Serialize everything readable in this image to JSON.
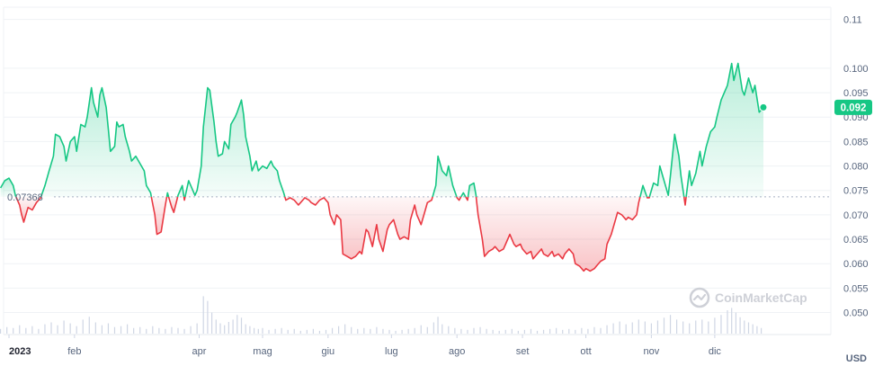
{
  "chart_data": {
    "type": "line",
    "currency_label": "USD",
    "watermark": "CoinMarketCap",
    "reference_value": 0.07368,
    "reference_label": "0.07368",
    "current_value": 0.092,
    "current_label": "0.092",
    "y_ticks": [
      "0.050",
      "0.055",
      "0.060",
      "0.065",
      "0.070",
      "0.075",
      "0.080",
      "0.085",
      "0.090",
      "0.095",
      "0.100",
      "0.11"
    ],
    "ylim": [
      0.0455,
      0.1125
    ],
    "x_ticks": [
      {
        "label": "2023",
        "day": 0,
        "bold": true
      },
      {
        "label": "feb",
        "day": 31
      },
      {
        "label": "apr",
        "day": 90
      },
      {
        "label": "mag",
        "day": 120
      },
      {
        "label": "giu",
        "day": 151
      },
      {
        "label": "lug",
        "day": 181
      },
      {
        "label": "ago",
        "day": 212
      },
      {
        "label": "set",
        "day": 243
      },
      {
        "label": "ott",
        "day": 273
      },
      {
        "label": "nov",
        "day": 304
      },
      {
        "label": "dic",
        "day": 334
      }
    ],
    "colors": {
      "up": "#16c784",
      "down": "#ea3943",
      "grid": "#eff2f5",
      "volume": "#cfd6e4",
      "tag_bg": "#16c784"
    },
    "price": [
      [
        -4,
        0.0755
      ],
      [
        -2,
        0.077
      ],
      [
        0,
        0.0775
      ],
      [
        2,
        0.076
      ],
      [
        3,
        0.074
      ],
      [
        5,
        0.072
      ],
      [
        6,
        0.07
      ],
      [
        7,
        0.0685
      ],
      [
        9,
        0.0715
      ],
      [
        11,
        0.071
      ],
      [
        13,
        0.0725
      ],
      [
        15,
        0.0735
      ],
      [
        17,
        0.076
      ],
      [
        19,
        0.079
      ],
      [
        21,
        0.082
      ],
      [
        22,
        0.0865
      ],
      [
        24,
        0.086
      ],
      [
        26,
        0.084
      ],
      [
        27,
        0.081
      ],
      [
        29,
        0.085
      ],
      [
        31,
        0.086
      ],
      [
        32,
        0.083
      ],
      [
        34,
        0.0885
      ],
      [
        36,
        0.088
      ],
      [
        37,
        0.09
      ],
      [
        39,
        0.096
      ],
      [
        40,
        0.093
      ],
      [
        42,
        0.09
      ],
      [
        43,
        0.0945
      ],
      [
        44,
        0.096
      ],
      [
        46,
        0.092
      ],
      [
        47,
        0.0875
      ],
      [
        48,
        0.083
      ],
      [
        50,
        0.084
      ],
      [
        51,
        0.089
      ],
      [
        52,
        0.088
      ],
      [
        54,
        0.0885
      ],
      [
        55,
        0.086
      ],
      [
        57,
        0.083
      ],
      [
        58,
        0.081
      ],
      [
        60,
        0.082
      ],
      [
        62,
        0.0805
      ],
      [
        64,
        0.079
      ],
      [
        65,
        0.076
      ],
      [
        67,
        0.0745
      ],
      [
        69,
        0.07
      ],
      [
        70,
        0.066
      ],
      [
        72,
        0.0665
      ],
      [
        74,
        0.072
      ],
      [
        75,
        0.0745
      ],
      [
        77,
        0.0715
      ],
      [
        78,
        0.0705
      ],
      [
        80,
        0.074
      ],
      [
        82,
        0.076
      ],
      [
        83,
        0.073
      ],
      [
        85,
        0.077
      ],
      [
        86,
        0.076
      ],
      [
        88,
        0.074
      ],
      [
        89,
        0.075
      ],
      [
        91,
        0.08
      ],
      [
        92,
        0.088
      ],
      [
        94,
        0.096
      ],
      [
        95,
        0.0955
      ],
      [
        97,
        0.089
      ],
      [
        98,
        0.085
      ],
      [
        99,
        0.082
      ],
      [
        101,
        0.0825
      ],
      [
        102,
        0.085
      ],
      [
        104,
        0.0835
      ],
      [
        105,
        0.0885
      ],
      [
        107,
        0.09
      ],
      [
        108,
        0.091
      ],
      [
        110,
        0.0935
      ],
      [
        111,
        0.0905
      ],
      [
        112,
        0.086
      ],
      [
        114,
        0.082
      ],
      [
        115,
        0.079
      ],
      [
        117,
        0.081
      ],
      [
        118,
        0.079
      ],
      [
        120,
        0.08
      ],
      [
        122,
        0.0795
      ],
      [
        124,
        0.081
      ],
      [
        125,
        0.08
      ],
      [
        127,
        0.079
      ],
      [
        128,
        0.077
      ],
      [
        130,
        0.0745
      ],
      [
        131,
        0.073
      ],
      [
        133,
        0.0735
      ],
      [
        135,
        0.073
      ],
      [
        137,
        0.072
      ],
      [
        138,
        0.0725
      ],
      [
        140,
        0.0735
      ],
      [
        142,
        0.073
      ],
      [
        143,
        0.0725
      ],
      [
        145,
        0.072
      ],
      [
        147,
        0.073
      ],
      [
        149,
        0.0735
      ],
      [
        151,
        0.0725
      ],
      [
        152,
        0.07
      ],
      [
        154,
        0.068
      ],
      [
        155,
        0.07
      ],
      [
        157,
        0.069
      ],
      [
        158,
        0.062
      ],
      [
        160,
        0.0615
      ],
      [
        162,
        0.061
      ],
      [
        164,
        0.0615
      ],
      [
        166,
        0.0625
      ],
      [
        167,
        0.062
      ],
      [
        169,
        0.067
      ],
      [
        170,
        0.0665
      ],
      [
        172,
        0.0635
      ],
      [
        174,
        0.068
      ],
      [
        175,
        0.065
      ],
      [
        177,
        0.0625
      ],
      [
        179,
        0.067
      ],
      [
        180,
        0.068
      ],
      [
        182,
        0.069
      ],
      [
        184,
        0.066
      ],
      [
        185,
        0.065
      ],
      [
        187,
        0.0655
      ],
      [
        189,
        0.065
      ],
      [
        190,
        0.069
      ],
      [
        192,
        0.072
      ],
      [
        193,
        0.07
      ],
      [
        195,
        0.068
      ],
      [
        197,
        0.071
      ],
      [
        198,
        0.0725
      ],
      [
        200,
        0.073
      ],
      [
        202,
        0.076
      ],
      [
        203,
        0.082
      ],
      [
        205,
        0.079
      ],
      [
        207,
        0.078
      ],
      [
        208,
        0.08
      ],
      [
        210,
        0.076
      ],
      [
        212,
        0.0735
      ],
      [
        213,
        0.073
      ],
      [
        215,
        0.0745
      ],
      [
        217,
        0.073
      ],
      [
        218,
        0.076
      ],
      [
        220,
        0.0765
      ],
      [
        221,
        0.074
      ],
      [
        222,
        0.07
      ],
      [
        224,
        0.065
      ],
      [
        225,
        0.0615
      ],
      [
        227,
        0.0625
      ],
      [
        229,
        0.063
      ],
      [
        230,
        0.0635
      ],
      [
        232,
        0.0625
      ],
      [
        234,
        0.063
      ],
      [
        235,
        0.064
      ],
      [
        237,
        0.066
      ],
      [
        239,
        0.064
      ],
      [
        240,
        0.0635
      ],
      [
        242,
        0.064
      ],
      [
        243,
        0.063
      ],
      [
        245,
        0.062
      ],
      [
        247,
        0.0625
      ],
      [
        248,
        0.061
      ],
      [
        250,
        0.062
      ],
      [
        252,
        0.063
      ],
      [
        253,
        0.062
      ],
      [
        255,
        0.0615
      ],
      [
        257,
        0.0625
      ],
      [
        258,
        0.0615
      ],
      [
        260,
        0.062
      ],
      [
        262,
        0.061
      ],
      [
        263,
        0.062
      ],
      [
        265,
        0.063
      ],
      [
        267,
        0.062
      ],
      [
        268,
        0.06
      ],
      [
        270,
        0.0595
      ],
      [
        272,
        0.0585
      ],
      [
        273,
        0.059
      ],
      [
        275,
        0.0585
      ],
      [
        277,
        0.059
      ],
      [
        278,
        0.0595
      ],
      [
        280,
        0.0605
      ],
      [
        282,
        0.061
      ],
      [
        283,
        0.064
      ],
      [
        285,
        0.066
      ],
      [
        287,
        0.069
      ],
      [
        288,
        0.0705
      ],
      [
        290,
        0.07
      ],
      [
        292,
        0.069
      ],
      [
        293,
        0.0695
      ],
      [
        295,
        0.069
      ],
      [
        297,
        0.07
      ],
      [
        298,
        0.0725
      ],
      [
        300,
        0.076
      ],
      [
        302,
        0.0735
      ],
      [
        303,
        0.0735
      ],
      [
        305,
        0.0765
      ],
      [
        307,
        0.076
      ],
      [
        308,
        0.08
      ],
      [
        310,
        0.077
      ],
      [
        312,
        0.074
      ],
      [
        313,
        0.078
      ],
      [
        315,
        0.0865
      ],
      [
        317,
        0.082
      ],
      [
        318,
        0.078
      ],
      [
        320,
        0.072
      ],
      [
        322,
        0.079
      ],
      [
        323,
        0.076
      ],
      [
        325,
        0.0785
      ],
      [
        327,
        0.083
      ],
      [
        328,
        0.08
      ],
      [
        330,
        0.084
      ],
      [
        332,
        0.087
      ],
      [
        334,
        0.088
      ],
      [
        335,
        0.09
      ],
      [
        337,
        0.0935
      ],
      [
        339,
        0.0955
      ],
      [
        340,
        0.0965
      ],
      [
        342,
        0.101
      ],
      [
        343,
        0.0975
      ],
      [
        345,
        0.101
      ],
      [
        347,
        0.0955
      ],
      [
        348,
        0.0945
      ],
      [
        350,
        0.098
      ],
      [
        352,
        0.095
      ],
      [
        353,
        0.0965
      ],
      [
        355,
        0.091
      ],
      [
        357,
        0.092
      ]
    ],
    "volume": [
      [
        -4,
        0.1
      ],
      [
        -1,
        0.14
      ],
      [
        2,
        0.12
      ],
      [
        5,
        0.18
      ],
      [
        8,
        0.12
      ],
      [
        11,
        0.16
      ],
      [
        14,
        0.1
      ],
      [
        17,
        0.2
      ],
      [
        20,
        0.24
      ],
      [
        23,
        0.18
      ],
      [
        26,
        0.28
      ],
      [
        29,
        0.22
      ],
      [
        32,
        0.16
      ],
      [
        35,
        0.3
      ],
      [
        38,
        0.36
      ],
      [
        41,
        0.24
      ],
      [
        44,
        0.18
      ],
      [
        47,
        0.22
      ],
      [
        50,
        0.14
      ],
      [
        53,
        0.16
      ],
      [
        56,
        0.2
      ],
      [
        59,
        0.12
      ],
      [
        62,
        0.14
      ],
      [
        65,
        0.1
      ],
      [
        68,
        0.16
      ],
      [
        71,
        0.12
      ],
      [
        74,
        0.1
      ],
      [
        77,
        0.14
      ],
      [
        80,
        0.12
      ],
      [
        83,
        0.1
      ],
      [
        86,
        0.16
      ],
      [
        89,
        0.22
      ],
      [
        92,
        0.8
      ],
      [
        94,
        0.7
      ],
      [
        96,
        0.45
      ],
      [
        98,
        0.3
      ],
      [
        100,
        0.22
      ],
      [
        102,
        0.18
      ],
      [
        104,
        0.25
      ],
      [
        106,
        0.3
      ],
      [
        108,
        0.4
      ],
      [
        110,
        0.34
      ],
      [
        112,
        0.2
      ],
      [
        114,
        0.16
      ],
      [
        116,
        0.12
      ],
      [
        118,
        0.1
      ],
      [
        120,
        0.12
      ],
      [
        123,
        0.08
      ],
      [
        126,
        0.1
      ],
      [
        129,
        0.12
      ],
      [
        132,
        0.08
      ],
      [
        135,
        0.1
      ],
      [
        138,
        0.06
      ],
      [
        141,
        0.08
      ],
      [
        144,
        0.1
      ],
      [
        147,
        0.06
      ],
      [
        150,
        0.08
      ],
      [
        153,
        0.12
      ],
      [
        156,
        0.16
      ],
      [
        159,
        0.2
      ],
      [
        162,
        0.14
      ],
      [
        165,
        0.1
      ],
      [
        168,
        0.12
      ],
      [
        171,
        0.1
      ],
      [
        174,
        0.14
      ],
      [
        177,
        0.1
      ],
      [
        180,
        0.08
      ],
      [
        183,
        0.06
      ],
      [
        186,
        0.08
      ],
      [
        189,
        0.1
      ],
      [
        192,
        0.12
      ],
      [
        195,
        0.18
      ],
      [
        198,
        0.14
      ],
      [
        201,
        0.24
      ],
      [
        203,
        0.36
      ],
      [
        205,
        0.2
      ],
      [
        208,
        0.16
      ],
      [
        211,
        0.12
      ],
      [
        214,
        0.1
      ],
      [
        217,
        0.08
      ],
      [
        220,
        0.12
      ],
      [
        223,
        0.14
      ],
      [
        226,
        0.1
      ],
      [
        229,
        0.08
      ],
      [
        232,
        0.06
      ],
      [
        235,
        0.08
      ],
      [
        238,
        0.1
      ],
      [
        241,
        0.06
      ],
      [
        244,
        0.08
      ],
      [
        247,
        0.1
      ],
      [
        250,
        0.06
      ],
      [
        253,
        0.08
      ],
      [
        256,
        0.1
      ],
      [
        259,
        0.12
      ],
      [
        262,
        0.08
      ],
      [
        265,
        0.1
      ],
      [
        268,
        0.08
      ],
      [
        271,
        0.12
      ],
      [
        274,
        0.1
      ],
      [
        277,
        0.14
      ],
      [
        280,
        0.12
      ],
      [
        283,
        0.18
      ],
      [
        286,
        0.22
      ],
      [
        289,
        0.26
      ],
      [
        292,
        0.2
      ],
      [
        295,
        0.24
      ],
      [
        298,
        0.3
      ],
      [
        301,
        0.26
      ],
      [
        304,
        0.22
      ],
      [
        307,
        0.28
      ],
      [
        310,
        0.34
      ],
      [
        313,
        0.4
      ],
      [
        316,
        0.3
      ],
      [
        319,
        0.26
      ],
      [
        322,
        0.22
      ],
      [
        325,
        0.28
      ],
      [
        328,
        0.3
      ],
      [
        331,
        0.26
      ],
      [
        334,
        0.34
      ],
      [
        337,
        0.4
      ],
      [
        340,
        0.5
      ],
      [
        342,
        0.55
      ],
      [
        344,
        0.45
      ],
      [
        346,
        0.35
      ],
      [
        348,
        0.28
      ],
      [
        350,
        0.24
      ],
      [
        352,
        0.2
      ],
      [
        354,
        0.16
      ],
      [
        356,
        0.12
      ]
    ]
  }
}
